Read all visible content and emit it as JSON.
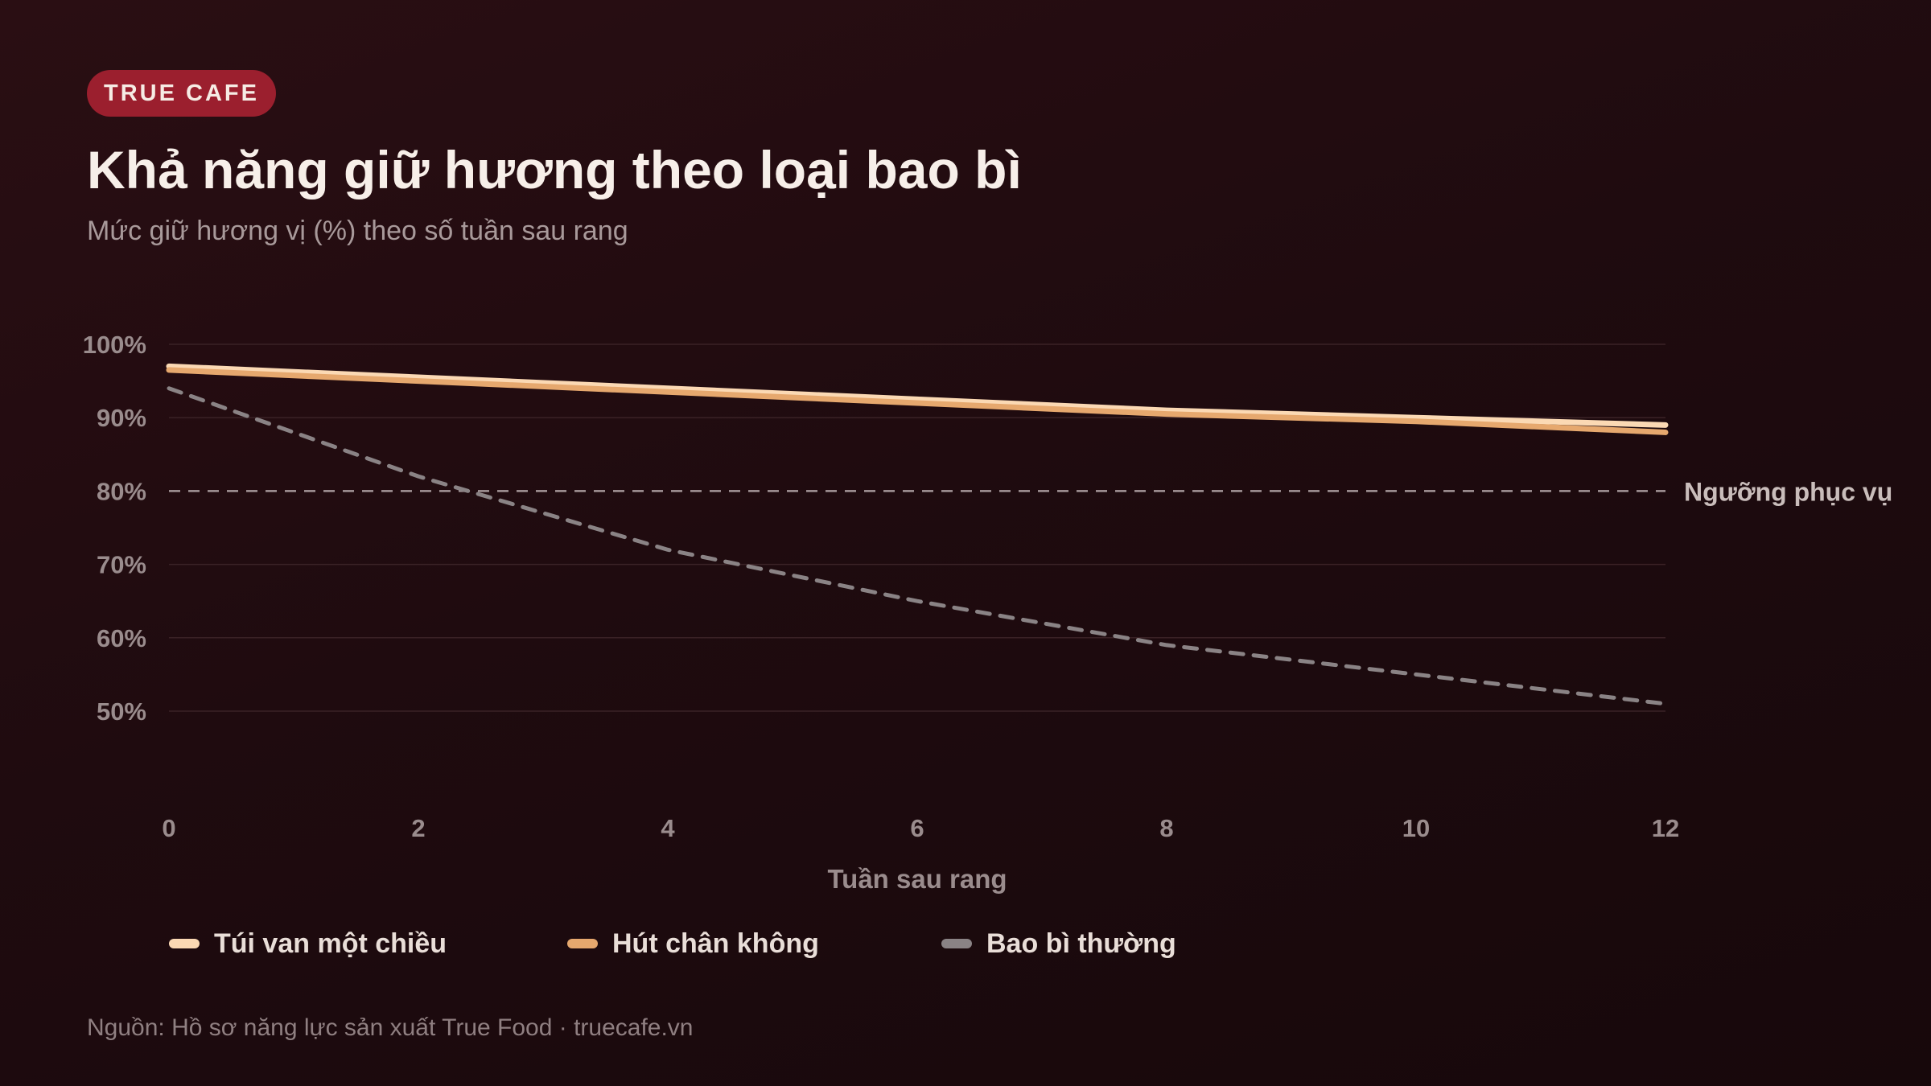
{
  "brand": {
    "badge": "TRUE CAFE"
  },
  "header": {
    "title": "Khả năng giữ hương theo loại bao bì",
    "subtitle": "Mức giữ hương vị (%) theo số tuần sau rang"
  },
  "footer": {
    "source": "Nguồn: Hồ sơ năng lực sản xuất True Food · truecafe.vn"
  },
  "chart_data": {
    "type": "line",
    "x": [
      0,
      2,
      4,
      6,
      8,
      10,
      12
    ],
    "xlabel": "Tuần sau rang",
    "ylabel": "",
    "xlim": [
      0,
      12
    ],
    "ylim": [
      50,
      100
    ],
    "x_ticks": [
      "0",
      "2",
      "4",
      "6",
      "8",
      "10",
      "12"
    ],
    "y_ticks": [
      "100%",
      "90%",
      "80%",
      "70%",
      "60%",
      "50%"
    ],
    "y_tick_values": [
      100,
      90,
      80,
      70,
      60,
      50
    ],
    "grid": true,
    "legend_position": "bottom",
    "series": [
      {
        "name": "Túi van một chiều",
        "color": "#fbd9b4",
        "style": "solid",
        "values": [
          97,
          95.5,
          94,
          92.5,
          91,
          90,
          89
        ]
      },
      {
        "name": "Hút chân không",
        "color": "#e6a86e",
        "style": "solid",
        "values": [
          96.5,
          95,
          93.5,
          92,
          90.5,
          89.5,
          88
        ]
      },
      {
        "name": "Bao bì thường",
        "color": "#8a8385",
        "style": "dashed",
        "values": [
          94,
          82,
          72,
          65,
          59,
          55,
          51
        ]
      }
    ],
    "reference_line": {
      "label": "Ngưỡng phục vụ",
      "value": 80,
      "color": "#c9bdbb"
    }
  }
}
